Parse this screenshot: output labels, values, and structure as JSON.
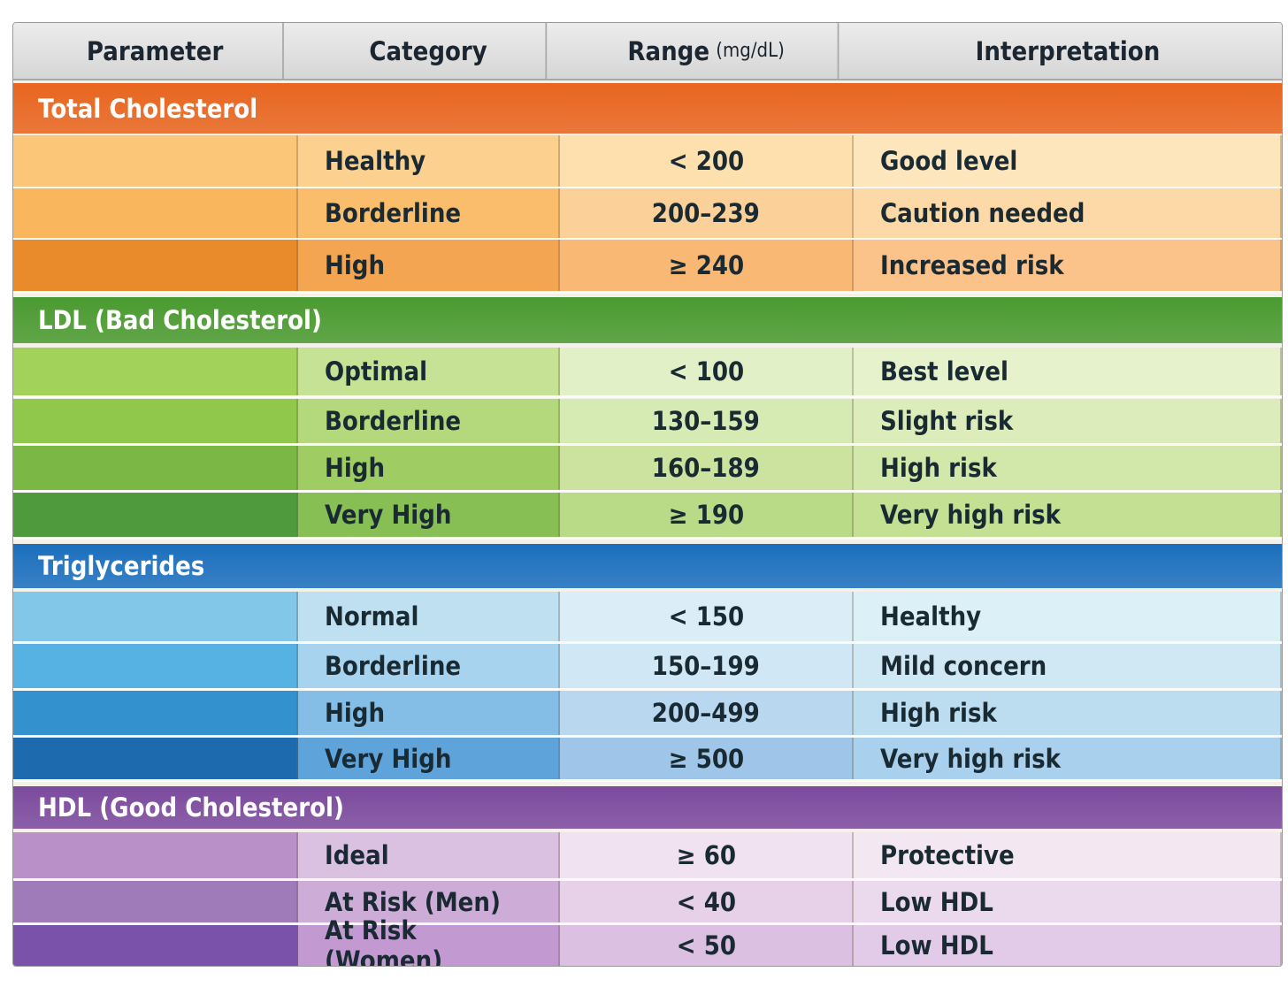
{
  "header": {
    "parameter": "Parameter",
    "category": "Category",
    "range": "Range",
    "range_unit": "(mg/dL)",
    "interpretation": "Interpretation"
  },
  "sections": [
    {
      "title": "Total Cholesterol",
      "color": "#e8651f",
      "rows": [
        {
          "category": "Healthy",
          "range": "< 200",
          "interpretation": "Good level"
        },
        {
          "category": "Borderline",
          "range": "200–239",
          "interpretation": "Caution needed"
        },
        {
          "category": "High",
          "range": "≥ 240",
          "interpretation": "Increased risk"
        }
      ]
    },
    {
      "title": "LDL (Bad Cholesterol)",
      "color": "#4a9a30",
      "rows": [
        {
          "category": "Optimal",
          "range": "< 100",
          "interpretation": "Best level"
        },
        {
          "category": "Borderline",
          "range": "130–159",
          "interpretation": "Slight risk"
        },
        {
          "category": "High",
          "range": "160–189",
          "interpretation": "High risk"
        },
        {
          "category": "Very High",
          "range": "≥ 190",
          "interpretation": "Very high risk"
        }
      ]
    },
    {
      "title": "Triglycerides",
      "color": "#1b6fbe",
      "rows": [
        {
          "category": "Normal",
          "range": "< 150",
          "interpretation": "Healthy"
        },
        {
          "category": "Borderline",
          "range": "150–199",
          "interpretation": "Mild concern"
        },
        {
          "category": "High",
          "range": "200–499",
          "interpretation": "High risk"
        },
        {
          "category": "Very High",
          "range": "≥ 500",
          "interpretation": "Very high risk"
        }
      ]
    },
    {
      "title": "HDL (Good Cholesterol)",
      "color": "#7b4a9e",
      "rows": [
        {
          "category": "Ideal",
          "range": "≥ 60",
          "interpretation": "Protective"
        },
        {
          "category": "At Risk (Men)",
          "range": "< 40",
          "interpretation": "Low HDL"
        },
        {
          "category": "At Risk (Women)",
          "range": "< 50",
          "interpretation": "Low HDL"
        }
      ]
    }
  ]
}
